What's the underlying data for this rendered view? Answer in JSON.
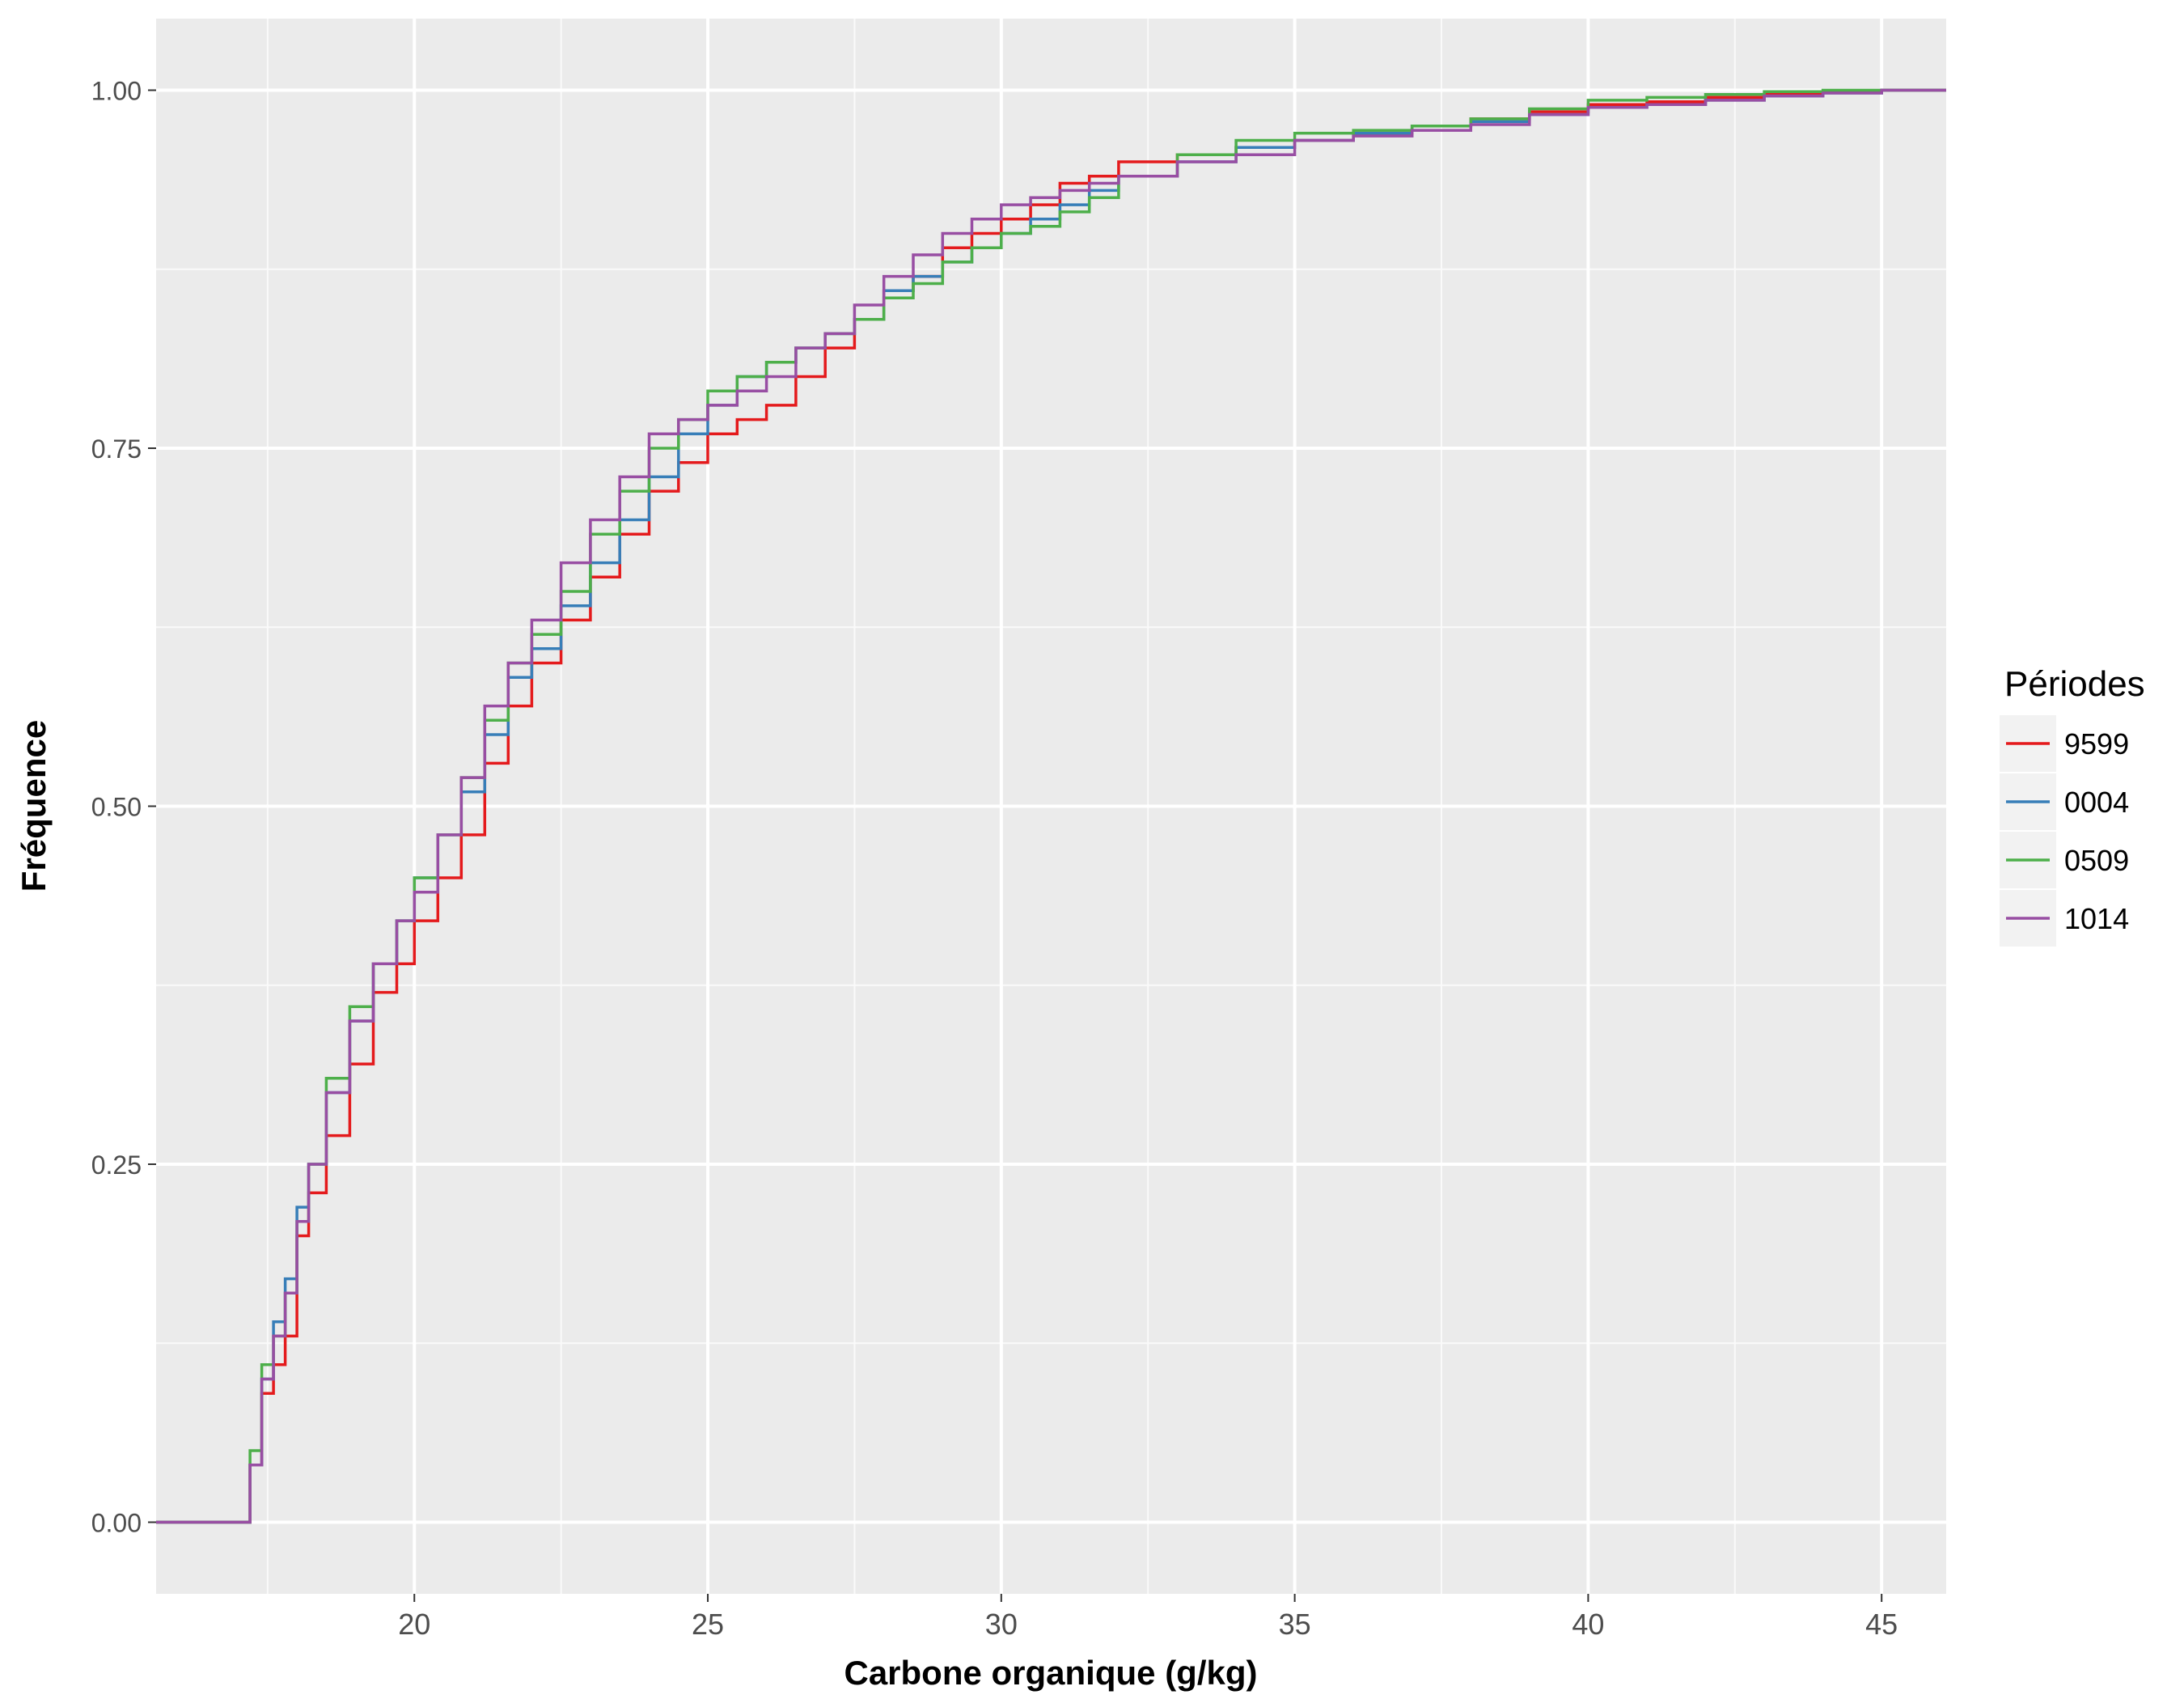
{
  "chart_data": {
    "type": "line",
    "subtype": "ecdf-step",
    "xlabel": "Carbone organique (g/kg)",
    "ylabel": "Fréquence",
    "xlim": [
      15.6,
      46.1
    ],
    "ylim": [
      -0.05,
      1.05
    ],
    "x_ticks": [
      20,
      25,
      30,
      35,
      40,
      45
    ],
    "x_tick_labels": [
      "20",
      "25",
      "30",
      "35",
      "40",
      "45"
    ],
    "y_ticks": [
      0,
      0.25,
      0.5,
      0.75,
      1
    ],
    "y_tick_labels": [
      "0.00",
      "0.25",
      "0.50",
      "0.75",
      "1.00"
    ],
    "grid": true,
    "panel_background": "#ebebeb",
    "legend": {
      "title": "Périodes",
      "position": "right",
      "labels": [
        "9599",
        "0004",
        "0509",
        "1014"
      ]
    },
    "series": [
      {
        "name": "9599",
        "color": "#e41a1c",
        "x": [
          15.6,
          17.0,
          17.2,
          17.4,
          17.6,
          17.8,
          18.0,
          18.2,
          18.5,
          18.9,
          19.3,
          19.7,
          20.0,
          20.4,
          20.8,
          21.2,
          21.6,
          22.0,
          22.5,
          23.0,
          23.5,
          24.0,
          24.5,
          25.0,
          25.5,
          26.0,
          26.5,
          27.0,
          27.5,
          28.0,
          28.5,
          29.0,
          29.5,
          30.0,
          30.5,
          31.0,
          31.5,
          32.0,
          33.0,
          34.0,
          35.0,
          36.0,
          37.0,
          38.0,
          39.0,
          40.0,
          41.0,
          42.0,
          43.0,
          44.0,
          45.0,
          46.1
        ],
        "y": [
          0.0,
          0.0,
          0.04,
          0.09,
          0.11,
          0.13,
          0.2,
          0.23,
          0.27,
          0.32,
          0.37,
          0.39,
          0.42,
          0.45,
          0.48,
          0.53,
          0.57,
          0.6,
          0.63,
          0.66,
          0.69,
          0.72,
          0.74,
          0.76,
          0.77,
          0.78,
          0.8,
          0.82,
          0.84,
          0.86,
          0.87,
          0.89,
          0.9,
          0.91,
          0.92,
          0.935,
          0.94,
          0.95,
          0.955,
          0.96,
          0.965,
          0.97,
          0.975,
          0.98,
          0.985,
          0.99,
          0.992,
          0.995,
          0.997,
          0.999,
          1.0,
          1.0
        ]
      },
      {
        "name": "0004",
        "color": "#377eb8",
        "x": [
          15.6,
          17.0,
          17.2,
          17.4,
          17.6,
          17.8,
          18.0,
          18.2,
          18.5,
          18.9,
          19.3,
          19.7,
          20.0,
          20.4,
          20.8,
          21.2,
          21.6,
          22.0,
          22.5,
          23.0,
          23.5,
          24.0,
          24.5,
          25.0,
          25.5,
          26.0,
          26.5,
          27.0,
          27.5,
          28.0,
          28.5,
          29.0,
          29.5,
          30.0,
          30.5,
          31.0,
          31.5,
          32.0,
          33.0,
          34.0,
          35.0,
          36.0,
          37.0,
          38.0,
          39.0,
          40.0,
          41.0,
          42.0,
          43.0,
          44.0,
          45.0,
          46.1
        ],
        "y": [
          0.0,
          0.0,
          0.04,
          0.1,
          0.14,
          0.17,
          0.22,
          0.25,
          0.3,
          0.35,
          0.39,
          0.42,
          0.45,
          0.48,
          0.51,
          0.55,
          0.59,
          0.61,
          0.64,
          0.67,
          0.7,
          0.73,
          0.76,
          0.78,
          0.8,
          0.81,
          0.82,
          0.83,
          0.84,
          0.86,
          0.87,
          0.88,
          0.89,
          0.9,
          0.91,
          0.92,
          0.93,
          0.94,
          0.95,
          0.96,
          0.965,
          0.97,
          0.975,
          0.978,
          0.983,
          0.988,
          0.99,
          0.993,
          0.996,
          0.998,
          1.0,
          1.0
        ]
      },
      {
        "name": "0509",
        "color": "#4daf4a",
        "x": [
          15.6,
          17.0,
          17.2,
          17.4,
          17.6,
          17.8,
          18.0,
          18.2,
          18.5,
          18.9,
          19.3,
          19.7,
          20.0,
          20.4,
          20.8,
          21.2,
          21.6,
          22.0,
          22.5,
          23.0,
          23.5,
          24.0,
          24.5,
          25.0,
          25.5,
          26.0,
          26.5,
          27.0,
          27.5,
          28.0,
          28.5,
          29.0,
          29.5,
          30.0,
          30.5,
          31.0,
          31.5,
          32.0,
          33.0,
          34.0,
          35.0,
          36.0,
          37.0,
          38.0,
          39.0,
          40.0,
          41.0,
          42.0,
          43.0,
          44.0,
          45.0,
          46.1
        ],
        "y": [
          0.0,
          0.0,
          0.05,
          0.11,
          0.13,
          0.16,
          0.21,
          0.25,
          0.31,
          0.36,
          0.39,
          0.42,
          0.45,
          0.48,
          0.52,
          0.56,
          0.6,
          0.62,
          0.65,
          0.69,
          0.72,
          0.75,
          0.77,
          0.79,
          0.8,
          0.81,
          0.82,
          0.83,
          0.84,
          0.855,
          0.865,
          0.88,
          0.89,
          0.9,
          0.905,
          0.915,
          0.925,
          0.94,
          0.955,
          0.965,
          0.97,
          0.972,
          0.975,
          0.98,
          0.987,
          0.993,
          0.995,
          0.997,
          0.999,
          1.0,
          1.0,
          1.0
        ]
      },
      {
        "name": "1014",
        "color": "#984ea3",
        "x": [
          15.6,
          17.0,
          17.2,
          17.4,
          17.6,
          17.8,
          18.0,
          18.2,
          18.5,
          18.9,
          19.3,
          19.7,
          20.0,
          20.4,
          20.8,
          21.2,
          21.6,
          22.0,
          22.5,
          23.0,
          23.5,
          24.0,
          24.5,
          25.0,
          25.5,
          26.0,
          26.5,
          27.0,
          27.5,
          28.0,
          28.5,
          29.0,
          29.5,
          30.0,
          30.5,
          31.0,
          31.5,
          32.0,
          33.0,
          34.0,
          35.0,
          36.0,
          37.0,
          38.0,
          39.0,
          40.0,
          41.0,
          42.0,
          43.0,
          44.0,
          45.0,
          46.1
        ],
        "y": [
          0.0,
          0.0,
          0.04,
          0.1,
          0.13,
          0.16,
          0.21,
          0.25,
          0.3,
          0.35,
          0.39,
          0.42,
          0.44,
          0.48,
          0.52,
          0.57,
          0.6,
          0.63,
          0.67,
          0.7,
          0.73,
          0.76,
          0.77,
          0.78,
          0.79,
          0.8,
          0.82,
          0.83,
          0.85,
          0.87,
          0.885,
          0.9,
          0.91,
          0.92,
          0.925,
          0.93,
          0.935,
          0.94,
          0.95,
          0.955,
          0.965,
          0.968,
          0.972,
          0.976,
          0.983,
          0.988,
          0.99,
          0.993,
          0.996,
          0.998,
          1.0,
          1.0
        ]
      }
    ]
  }
}
